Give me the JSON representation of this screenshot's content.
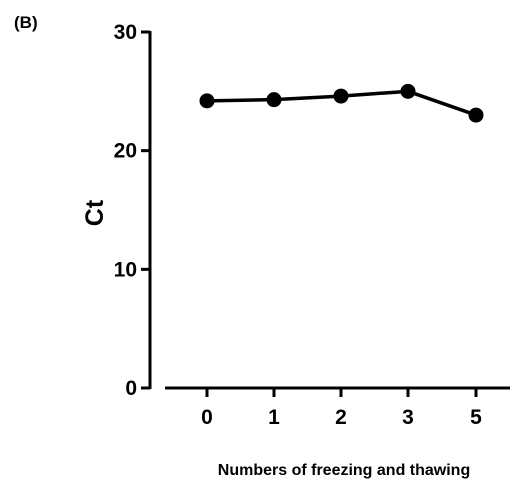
{
  "panel_label": "(B)",
  "colors": {
    "line": "#000000",
    "marker": "#000000",
    "axis": "#000000"
  },
  "chart_data": {
    "type": "line",
    "title": "",
    "xlabel": "Numbers of freezing and thawing",
    "ylabel": "Ct",
    "categories": [
      "0",
      "1",
      "2",
      "3",
      "5"
    ],
    "series": [
      {
        "values": [
          24.2,
          24.3,
          24.6,
          25.0,
          23.0
        ]
      }
    ],
    "ylim": [
      0,
      30
    ],
    "yticks": [
      "0",
      "10",
      "20",
      "30"
    ],
    "grid": false,
    "legend": "none",
    "marker": "circle"
  }
}
